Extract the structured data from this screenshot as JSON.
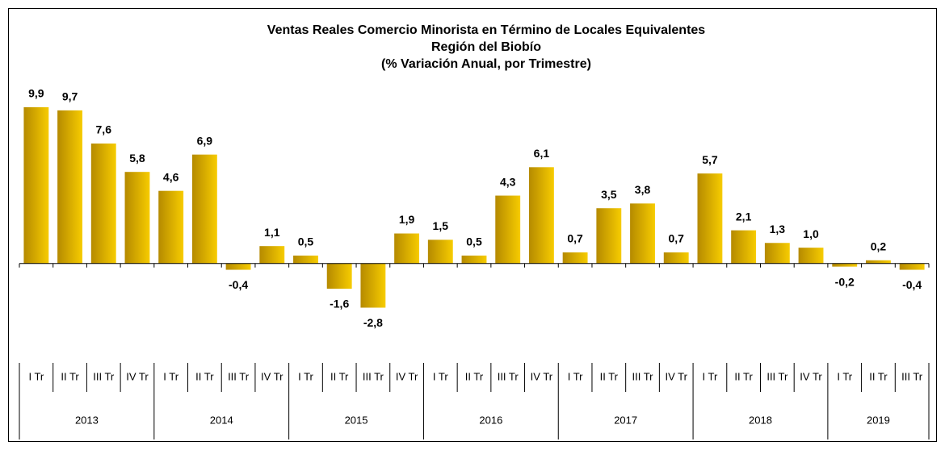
{
  "chart_data": {
    "type": "bar",
    "title": [
      "Ventas Reales Comercio Minorista en Término de Locales Equivalentes",
      "Región del Biobío",
      "(% Variación Anual, por Trimestre)"
    ],
    "categories": [
      "I Tr",
      "II Tr",
      "III Tr",
      "IV Tr",
      "I Tr",
      "II Tr",
      "III Tr",
      "IV Tr",
      "I Tr",
      "II Tr",
      "III Tr",
      "IV Tr",
      "I Tr",
      "II Tr",
      "III Tr",
      "IV Tr",
      "I Tr",
      "II Tr",
      "III Tr",
      "IV Tr",
      "I Tr",
      "II Tr",
      "III Tr",
      "IV Tr",
      "I Tr",
      "II Tr",
      "III Tr"
    ],
    "groups": [
      {
        "label": "2013",
        "size": 4
      },
      {
        "label": "2014",
        "size": 4
      },
      {
        "label": "2015",
        "size": 4
      },
      {
        "label": "2016",
        "size": 4
      },
      {
        "label": "2017",
        "size": 4
      },
      {
        "label": "2018",
        "size": 4
      },
      {
        "label": "2019",
        "size": 3
      }
    ],
    "values": [
      9.9,
      9.7,
      7.6,
      5.8,
      4.6,
      6.9,
      -0.4,
      1.1,
      0.5,
      -1.6,
      -2.8,
      1.9,
      1.5,
      0.5,
      4.3,
      6.1,
      0.7,
      3.5,
      3.8,
      0.7,
      5.7,
      2.1,
      1.3,
      1.0,
      -0.2,
      0.2,
      -0.4
    ],
    "value_labels": [
      "9,9",
      "9,7",
      "7,6",
      "5,8",
      "4,6",
      "6,9",
      "-0,4",
      "1,1",
      "0,5",
      "-1,6",
      "-2,8",
      "1,9",
      "1,5",
      "0,5",
      "4,3",
      "6,1",
      "0,7",
      "3,5",
      "3,8",
      "0,7",
      "5,7",
      "2,1",
      "1,3",
      "1,0",
      "-0,2",
      "0,2",
      "-0,4"
    ],
    "ylim": [
      -4,
      10
    ]
  }
}
